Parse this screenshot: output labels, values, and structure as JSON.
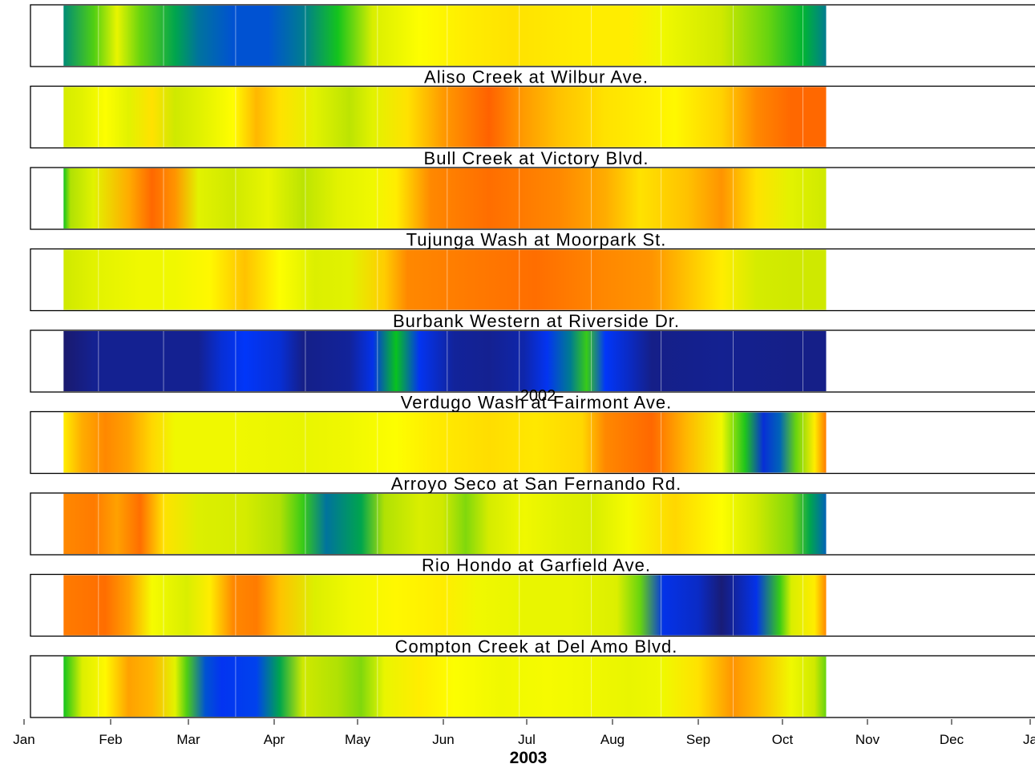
{
  "chart_data": {
    "type": "heatmap",
    "xlabel": "2003",
    "x_ticks": [
      "Jan",
      "Feb",
      "Mar",
      "Apr",
      "May",
      "Jun",
      "Jul",
      "Aug",
      "Sep",
      "Oct",
      "Nov",
      "Dec",
      "Ja"
    ],
    "overlay_text": "2002",
    "color_scale": [
      "#1a1a6e",
      "#0037ff",
      "#00c020",
      "#c8e600",
      "#ffff00",
      "#ffa500",
      "#ff3c00"
    ],
    "panels": [
      {
        "title": "",
        "start_day": 17,
        "end_day": 345,
        "stops": [
          [
            17,
            0.27
          ],
          [
            30,
            0.4
          ],
          [
            40,
            0.6
          ],
          [
            50,
            0.42
          ],
          [
            65,
            0.3
          ],
          [
            75,
            0.24
          ],
          [
            90,
            0.2
          ],
          [
            105,
            0.2
          ],
          [
            120,
            0.25
          ],
          [
            135,
            0.35
          ],
          [
            150,
            0.55
          ],
          [
            170,
            0.66
          ],
          [
            190,
            0.7
          ],
          [
            210,
            0.72
          ],
          [
            240,
            0.7
          ],
          [
            260,
            0.7
          ],
          [
            275,
            0.62
          ],
          [
            300,
            0.52
          ],
          [
            320,
            0.42
          ],
          [
            335,
            0.32
          ],
          [
            345,
            0.25
          ]
        ]
      },
      {
        "title": "Aliso Creek at Wilbur Ave.",
        "start_day": 17,
        "end_day": 345,
        "stops": [
          [
            17,
            0.54
          ],
          [
            25,
            0.58
          ],
          [
            35,
            0.66
          ],
          [
            45,
            0.58
          ],
          [
            55,
            0.72
          ],
          [
            65,
            0.52
          ],
          [
            75,
            0.57
          ],
          [
            90,
            0.67
          ],
          [
            100,
            0.8
          ],
          [
            110,
            0.72
          ],
          [
            125,
            0.58
          ],
          [
            140,
            0.49
          ],
          [
            150,
            0.58
          ],
          [
            165,
            0.72
          ],
          [
            180,
            0.85
          ],
          [
            200,
            0.94
          ],
          [
            215,
            0.85
          ],
          [
            230,
            0.78
          ],
          [
            250,
            0.72
          ],
          [
            265,
            0.7
          ],
          [
            280,
            0.68
          ],
          [
            300,
            0.75
          ],
          [
            315,
            0.88
          ],
          [
            330,
            0.93
          ],
          [
            345,
            0.93
          ]
        ]
      },
      {
        "title": "Bull Creek at Victory Blvd.",
        "start_day": 17,
        "end_day": 345,
        "stops": [
          [
            17,
            0.35
          ],
          [
            20,
            0.48
          ],
          [
            30,
            0.58
          ],
          [
            45,
            0.82
          ],
          [
            55,
            0.93
          ],
          [
            65,
            0.86
          ],
          [
            75,
            0.58
          ],
          [
            90,
            0.52
          ],
          [
            105,
            0.6
          ],
          [
            120,
            0.49
          ],
          [
            135,
            0.58
          ],
          [
            150,
            0.62
          ],
          [
            160,
            0.7
          ],
          [
            175,
            0.88
          ],
          [
            200,
            0.92
          ],
          [
            230,
            0.88
          ],
          [
            250,
            0.82
          ],
          [
            265,
            0.72
          ],
          [
            285,
            0.78
          ],
          [
            300,
            0.86
          ],
          [
            315,
            0.72
          ],
          [
            330,
            0.58
          ],
          [
            345,
            0.52
          ]
        ]
      },
      {
        "title": "Tujunga Wash at Moorpark St.",
        "start_day": 17,
        "end_day": 345,
        "stops": [
          [
            17,
            0.52
          ],
          [
            30,
            0.58
          ],
          [
            50,
            0.62
          ],
          [
            65,
            0.62
          ],
          [
            80,
            0.68
          ],
          [
            95,
            0.78
          ],
          [
            110,
            0.66
          ],
          [
            125,
            0.56
          ],
          [
            140,
            0.58
          ],
          [
            155,
            0.76
          ],
          [
            165,
            0.88
          ],
          [
            190,
            0.9
          ],
          [
            220,
            0.92
          ],
          [
            250,
            0.88
          ],
          [
            270,
            0.86
          ],
          [
            285,
            0.78
          ],
          [
            300,
            0.7
          ],
          [
            315,
            0.54
          ],
          [
            330,
            0.52
          ],
          [
            345,
            0.52
          ]
        ]
      },
      {
        "title": "Burbank Western at Riverside Dr.",
        "start_day": 17,
        "end_day": 345,
        "stops": [
          [
            17,
            0.0
          ],
          [
            30,
            0.04
          ],
          [
            75,
            0.04
          ],
          [
            85,
            0.12
          ],
          [
            95,
            0.16
          ],
          [
            110,
            0.12
          ],
          [
            120,
            0.03
          ],
          [
            140,
            0.05
          ],
          [
            150,
            0.14
          ],
          [
            160,
            0.34
          ],
          [
            170,
            0.15
          ],
          [
            185,
            0.05
          ],
          [
            200,
            0.04
          ],
          [
            215,
            0.07
          ],
          [
            225,
            0.15
          ],
          [
            235,
            0.25
          ],
          [
            242,
            0.38
          ],
          [
            250,
            0.16
          ],
          [
            260,
            0.1
          ],
          [
            270,
            0.03
          ],
          [
            300,
            0.04
          ],
          [
            330,
            0.03
          ],
          [
            345,
            0.03
          ]
        ]
      },
      {
        "title": "Verdugo Wash at Fairmont Ave.",
        "start_day": 17,
        "end_day": 345,
        "stops": [
          [
            17,
            0.7
          ],
          [
            25,
            0.82
          ],
          [
            35,
            0.88
          ],
          [
            45,
            0.84
          ],
          [
            55,
            0.74
          ],
          [
            65,
            0.62
          ],
          [
            90,
            0.62
          ],
          [
            120,
            0.6
          ],
          [
            140,
            0.62
          ],
          [
            160,
            0.66
          ],
          [
            175,
            0.7
          ],
          [
            200,
            0.73
          ],
          [
            220,
            0.71
          ],
          [
            240,
            0.74
          ],
          [
            250,
            0.88
          ],
          [
            270,
            0.93
          ],
          [
            285,
            0.8
          ],
          [
            300,
            0.62
          ],
          [
            310,
            0.36
          ],
          [
            318,
            0.12
          ],
          [
            325,
            0.22
          ],
          [
            332,
            0.42
          ],
          [
            340,
            0.7
          ],
          [
            345,
            0.9
          ]
        ]
      },
      {
        "title": "Arroyo Seco at San Fernando Rd.",
        "start_day": 17,
        "end_day": 345,
        "stops": [
          [
            17,
            0.88
          ],
          [
            30,
            0.9
          ],
          [
            40,
            0.84
          ],
          [
            50,
            0.92
          ],
          [
            60,
            0.72
          ],
          [
            75,
            0.56
          ],
          [
            95,
            0.54
          ],
          [
            110,
            0.48
          ],
          [
            120,
            0.38
          ],
          [
            130,
            0.24
          ],
          [
            145,
            0.3
          ],
          [
            155,
            0.48
          ],
          [
            170,
            0.55
          ],
          [
            180,
            0.52
          ],
          [
            190,
            0.44
          ],
          [
            200,
            0.54
          ],
          [
            215,
            0.62
          ],
          [
            230,
            0.58
          ],
          [
            245,
            0.55
          ],
          [
            260,
            0.64
          ],
          [
            280,
            0.74
          ],
          [
            300,
            0.66
          ],
          [
            315,
            0.52
          ],
          [
            330,
            0.44
          ],
          [
            338,
            0.3
          ],
          [
            345,
            0.22
          ]
        ]
      },
      {
        "title": "Rio Hondo at Garfield Ave.",
        "start_day": 17,
        "end_day": 345,
        "stops": [
          [
            17,
            0.9
          ],
          [
            35,
            0.92
          ],
          [
            45,
            0.84
          ],
          [
            55,
            0.64
          ],
          [
            70,
            0.55
          ],
          [
            80,
            0.7
          ],
          [
            90,
            0.88
          ],
          [
            100,
            0.9
          ],
          [
            110,
            0.78
          ],
          [
            125,
            0.56
          ],
          [
            140,
            0.62
          ],
          [
            160,
            0.68
          ],
          [
            180,
            0.7
          ],
          [
            195,
            0.62
          ],
          [
            215,
            0.6
          ],
          [
            235,
            0.6
          ],
          [
            255,
            0.56
          ],
          [
            265,
            0.42
          ],
          [
            275,
            0.14
          ],
          [
            290,
            0.1
          ],
          [
            300,
            0.01
          ],
          [
            315,
            0.14
          ],
          [
            325,
            0.38
          ],
          [
            330,
            0.55
          ],
          [
            340,
            0.7
          ],
          [
            345,
            0.88
          ]
        ]
      },
      {
        "title": "Compton Creek at Del Amo Blvd.",
        "start_day": 17,
        "end_day": 345,
        "stops": [
          [
            17,
            0.35
          ],
          [
            25,
            0.56
          ],
          [
            35,
            0.68
          ],
          [
            45,
            0.84
          ],
          [
            55,
            0.8
          ],
          [
            65,
            0.58
          ],
          [
            70,
            0.4
          ],
          [
            78,
            0.2
          ],
          [
            85,
            0.15
          ],
          [
            100,
            0.18
          ],
          [
            110,
            0.3
          ],
          [
            120,
            0.52
          ],
          [
            135,
            0.48
          ],
          [
            145,
            0.44
          ],
          [
            155,
            0.6
          ],
          [
            170,
            0.7
          ],
          [
            185,
            0.66
          ],
          [
            205,
            0.62
          ],
          [
            225,
            0.64
          ],
          [
            245,
            0.62
          ],
          [
            260,
            0.6
          ],
          [
            275,
            0.62
          ],
          [
            290,
            0.72
          ],
          [
            305,
            0.86
          ],
          [
            315,
            0.8
          ],
          [
            330,
            0.62
          ],
          [
            340,
            0.52
          ],
          [
            345,
            0.42
          ]
        ]
      }
    ]
  }
}
